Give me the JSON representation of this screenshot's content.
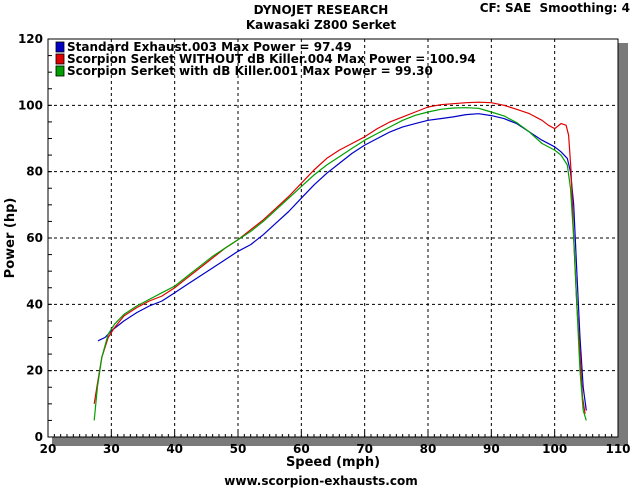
{
  "header": {
    "company": "DYNOJET RESEARCH",
    "title": "Kawasaki Z800 Serket",
    "cf": "CF: SAE",
    "smoothing": "Smoothing: 4"
  },
  "footer": {
    "website": "www.scorpion-exhausts.com"
  },
  "chart_data": {
    "type": "line",
    "xlabel": "Speed (mph)",
    "ylabel": "Power (hp)",
    "xlim": [
      20,
      110
    ],
    "ylim": [
      0,
      120
    ],
    "x_ticks": [
      20,
      30,
      40,
      50,
      60,
      70,
      80,
      90,
      100,
      110
    ],
    "y_ticks": [
      0,
      20,
      40,
      60,
      80,
      100,
      120
    ],
    "grid": "dashed",
    "legend_position": "top-left",
    "series": [
      {
        "name": "Standard Exhaust.003 Max Power = 97.49",
        "color": "#0000c8",
        "x": [
          27.9,
          29,
          30,
          32,
          34,
          36,
          38,
          40,
          42,
          44,
          46,
          48,
          50,
          52,
          54,
          56,
          58,
          60,
          62,
          64,
          66,
          68,
          70,
          72,
          74,
          76,
          78,
          80,
          82,
          84,
          86,
          88,
          90,
          92,
          94,
          96,
          98,
          100,
          101,
          102,
          102.5,
          103,
          103.5,
          104,
          104.5,
          105
        ],
        "y": [
          29,
          30,
          32,
          35,
          37.5,
          39.5,
          41,
          43.5,
          46,
          48.5,
          51,
          53.5,
          56,
          58,
          61,
          64.5,
          68,
          72,
          76,
          79.5,
          82.5,
          85.5,
          88,
          90,
          92,
          93.5,
          94.5,
          95.5,
          96,
          96.5,
          97.2,
          97.49,
          96.9,
          96,
          94.5,
          92,
          89.5,
          87.5,
          86,
          84,
          80,
          70,
          50,
          30,
          15,
          8
        ]
      },
      {
        "name": "Scorpion Serket WITHOUT dB Killer.004 Max Power = 100.94",
        "color": "#e00000",
        "x": [
          27.3,
          27.8,
          28.5,
          29.5,
          30.5,
          32,
          34,
          36,
          38,
          40,
          42,
          44,
          46,
          48,
          50,
          52,
          54,
          56,
          58,
          60,
          62,
          64,
          66,
          68,
          70,
          72,
          74,
          76,
          78,
          80,
          82,
          84,
          86,
          88,
          90,
          92,
          94,
          96,
          98,
          99,
          100,
          101,
          101.8,
          102.2,
          102.6,
          103,
          103.5,
          104,
          104.4,
          104.8
        ],
        "y": [
          10,
          16,
          24,
          30,
          33,
          36.5,
          39,
          41,
          42.5,
          45,
          48,
          51,
          54,
          57,
          59.5,
          62.5,
          65.5,
          69,
          72.5,
          76.5,
          80.5,
          84,
          86.5,
          88.5,
          90.5,
          93,
          95,
          96.5,
          98,
          99.5,
          100.2,
          100.5,
          100.8,
          100.94,
          100.8,
          100,
          98.8,
          97.5,
          95.5,
          94,
          93,
          94.5,
          94,
          91,
          80,
          60,
          40,
          25,
          12,
          7
        ]
      },
      {
        "name": "Scorpion Serket with dB Killer.001 Max Power = 99.30",
        "color": "#00a000",
        "x": [
          27.3,
          27.8,
          28.5,
          29.5,
          30.5,
          32,
          34,
          36,
          38,
          40,
          42,
          44,
          46,
          48,
          50,
          52,
          54,
          56,
          58,
          60,
          62,
          64,
          66,
          68,
          70,
          72,
          74,
          76,
          78,
          80,
          82,
          84,
          86,
          88,
          90,
          92,
          94,
          96,
          98,
          100,
          101,
          102,
          102.5,
          103,
          103.5,
          104,
          104.5,
          105
        ],
        "y": [
          5,
          15,
          24,
          31,
          34,
          37,
          39.5,
          41.5,
          43.5,
          45.5,
          48.5,
          51.5,
          54.5,
          57,
          59.5,
          62,
          65,
          68.5,
          72,
          75.5,
          79,
          82,
          84.5,
          87,
          89.5,
          91.5,
          93.5,
          95.5,
          97,
          98,
          98.8,
          99.2,
          99.3,
          99.1,
          98,
          96.8,
          94.8,
          92,
          88.5,
          86.5,
          85,
          82,
          75,
          60,
          40,
          20,
          8,
          5
        ]
      }
    ]
  }
}
